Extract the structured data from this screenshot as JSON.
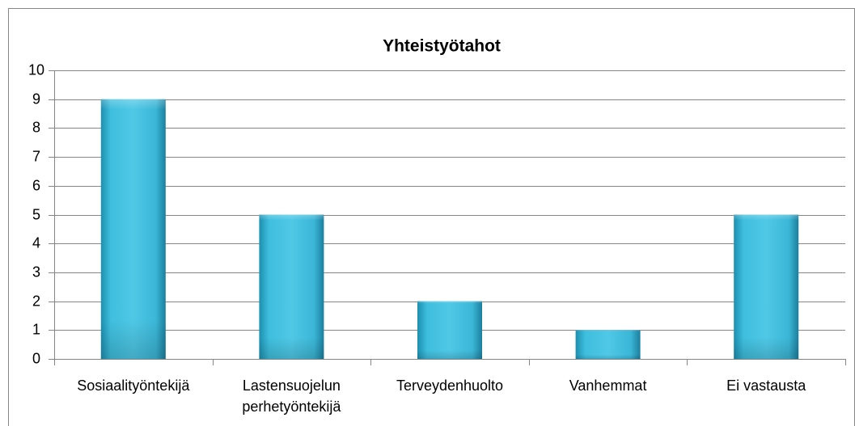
{
  "chart_data": {
    "type": "bar",
    "title": "Yhteistyötahot",
    "categories": [
      "Sosiaalityöntekijä",
      "Lastensuojelun perhetyöntekijä",
      "Terveydenhuolto",
      "Vanhemmat",
      "Ei vastausta"
    ],
    "values": [
      9,
      5,
      2,
      1,
      5
    ],
    "color": "#3cb8d8",
    "ylim": [
      0,
      10
    ],
    "yticks": [
      0,
      1,
      2,
      3,
      4,
      5,
      6,
      7,
      8,
      9,
      10
    ],
    "grid": true
  }
}
